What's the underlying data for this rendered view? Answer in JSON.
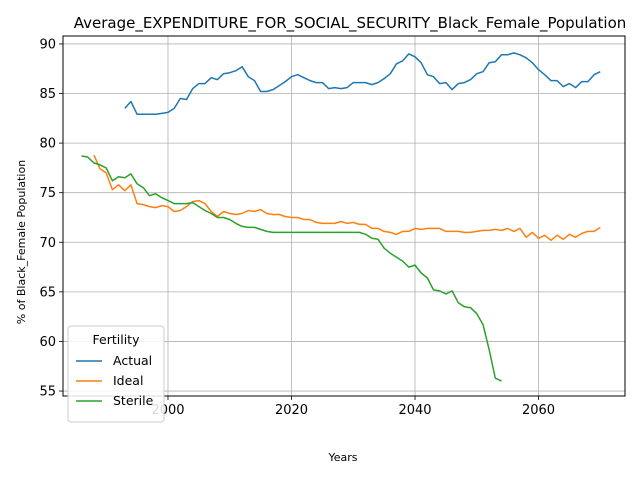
{
  "chart_data": {
    "type": "line",
    "title": "Average_EXPENDITURE_FOR_SOCIAL_SECURITY_Black_Female_Population",
    "xlabel": "Years",
    "ylabel": "% of Black_Female Population",
    "xlim": [
      1983,
      2074
    ],
    "ylim": [
      54.5,
      90.8
    ],
    "xticks": [
      2000,
      2020,
      2040,
      2060
    ],
    "yticks": [
      55,
      60,
      65,
      70,
      75,
      80,
      85,
      90
    ],
    "grid": true,
    "legend": {
      "title": "Fertility",
      "position": "lower-left"
    },
    "series": [
      {
        "name": "Actual",
        "color": "#1f77b4",
        "x": [
          1993,
          1994,
          1995,
          1996,
          1997,
          1998,
          1999,
          2000,
          2001,
          2002,
          2003,
          2004,
          2005,
          2006,
          2007,
          2008,
          2009,
          2010,
          2011,
          2012,
          2013,
          2014,
          2015,
          2016,
          2017,
          2018,
          2019,
          2020,
          2021,
          2022,
          2023,
          2024,
          2025,
          2026,
          2027,
          2028,
          2029,
          2030,
          2031,
          2032,
          2033,
          2034,
          2035,
          2036,
          2037,
          2038,
          2039,
          2040,
          2041,
          2042,
          2043,
          2044,
          2045,
          2046,
          2047,
          2048,
          2049,
          2050,
          2051,
          2052,
          2053,
          2054,
          2055,
          2056,
          2057,
          2058,
          2059,
          2060,
          2061,
          2062,
          2063,
          2064,
          2065,
          2066,
          2067,
          2068,
          2069,
          2070
        ],
        "y": [
          83.5,
          84.2,
          82.9,
          82.9,
          82.9,
          82.9,
          83.0,
          83.1,
          83.5,
          84.5,
          84.4,
          85.5,
          86.0,
          86.0,
          86.6,
          86.4,
          87.0,
          87.1,
          87.3,
          87.7,
          86.7,
          86.3,
          85.2,
          85.2,
          85.4,
          85.8,
          86.2,
          86.7,
          86.9,
          86.6,
          86.3,
          86.1,
          86.1,
          85.5,
          85.6,
          85.5,
          85.6,
          86.1,
          86.1,
          86.1,
          85.9,
          86.1,
          86.5,
          87.0,
          88.0,
          88.3,
          89.0,
          88.7,
          88.1,
          86.9,
          86.7,
          86.0,
          86.1,
          85.4,
          86.0,
          86.1,
          86.4,
          87.0,
          87.2,
          88.1,
          88.2,
          88.9,
          88.9,
          89.1,
          88.9,
          88.6,
          88.1,
          87.4,
          86.9,
          86.3,
          86.3,
          85.7,
          86.0,
          85.6,
          86.2,
          86.2,
          86.9,
          87.2
        ]
      },
      {
        "name": "Ideal",
        "color": "#ff7f0e",
        "x": [
          1988,
          1989,
          1990,
          1991,
          1992,
          1993,
          1994,
          1995,
          1996,
          1997,
          1998,
          1999,
          2000,
          2001,
          2002,
          2003,
          2004,
          2005,
          2006,
          2007,
          2008,
          2009,
          2010,
          2011,
          2012,
          2013,
          2014,
          2015,
          2016,
          2017,
          2018,
          2019,
          2020,
          2021,
          2022,
          2023,
          2024,
          2025,
          2026,
          2027,
          2028,
          2029,
          2030,
          2031,
          2032,
          2033,
          2034,
          2035,
          2036,
          2037,
          2038,
          2039,
          2040,
          2041,
          2042,
          2043,
          2044,
          2045,
          2046,
          2047,
          2048,
          2049,
          2050,
          2051,
          2052,
          2053,
          2054,
          2055,
          2056,
          2057,
          2058,
          2059,
          2060,
          2061,
          2062,
          2063,
          2064,
          2065,
          2066,
          2067,
          2068,
          2069,
          2070
        ],
        "y": [
          78.8,
          77.4,
          77.0,
          75.3,
          75.8,
          75.2,
          75.8,
          73.9,
          73.8,
          73.6,
          73.5,
          73.7,
          73.6,
          73.1,
          73.2,
          73.6,
          74.1,
          74.2,
          73.9,
          73.1,
          72.6,
          73.1,
          72.9,
          72.8,
          72.9,
          73.2,
          73.1,
          73.3,
          72.9,
          72.8,
          72.8,
          72.6,
          72.5,
          72.5,
          72.3,
          72.3,
          72.0,
          71.9,
          71.9,
          71.9,
          72.1,
          71.9,
          72.0,
          71.8,
          71.8,
          71.4,
          71.4,
          71.1,
          71.0,
          70.8,
          71.1,
          71.1,
          71.4,
          71.3,
          71.4,
          71.4,
          71.4,
          71.1,
          71.1,
          71.1,
          71.0,
          71.0,
          71.1,
          71.2,
          71.2,
          71.3,
          71.2,
          71.4,
          71.1,
          71.4,
          70.5,
          71.0,
          70.4,
          70.7,
          70.2,
          70.7,
          70.3,
          70.8,
          70.5,
          70.9,
          71.1,
          71.1,
          71.5
        ]
      },
      {
        "name": "Sterile",
        "color": "#2ca02c",
        "x": [
          1986,
          1987,
          1988,
          1989,
          1990,
          1991,
          1992,
          1993,
          1994,
          1995,
          1996,
          1997,
          1998,
          1999,
          2000,
          2001,
          2002,
          2003,
          2004,
          2005,
          2006,
          2007,
          2008,
          2009,
          2010,
          2011,
          2012,
          2013,
          2014,
          2015,
          2016,
          2017,
          2018,
          2019,
          2020,
          2021,
          2022,
          2023,
          2024,
          2025,
          2026,
          2027,
          2028,
          2029,
          2030,
          2031,
          2032,
          2033,
          2034,
          2035,
          2036,
          2037,
          2038,
          2039,
          2040,
          2041,
          2042,
          2043,
          2044,
          2045,
          2046,
          2047,
          2048,
          2049,
          2050,
          2051,
          2052,
          2053,
          2054
        ],
        "y": [
          78.7,
          78.6,
          78.0,
          77.8,
          77.5,
          76.2,
          76.6,
          76.5,
          76.9,
          75.9,
          75.5,
          74.7,
          74.9,
          74.5,
          74.2,
          73.9,
          73.9,
          73.9,
          74.0,
          73.6,
          73.2,
          72.9,
          72.5,
          72.5,
          72.3,
          71.9,
          71.6,
          71.5,
          71.5,
          71.3,
          71.1,
          71.0,
          71.0,
          71.0,
          71.0,
          71.0,
          71.0,
          71.0,
          71.0,
          71.0,
          71.0,
          71.0,
          71.0,
          71.0,
          71.0,
          71.0,
          70.8,
          70.4,
          70.3,
          69.4,
          68.9,
          68.5,
          68.1,
          67.5,
          67.7,
          66.9,
          66.4,
          65.2,
          65.1,
          64.8,
          65.1,
          63.9,
          63.5,
          63.4,
          62.8,
          61.7,
          59.2,
          56.3,
          56.0
        ]
      }
    ]
  }
}
